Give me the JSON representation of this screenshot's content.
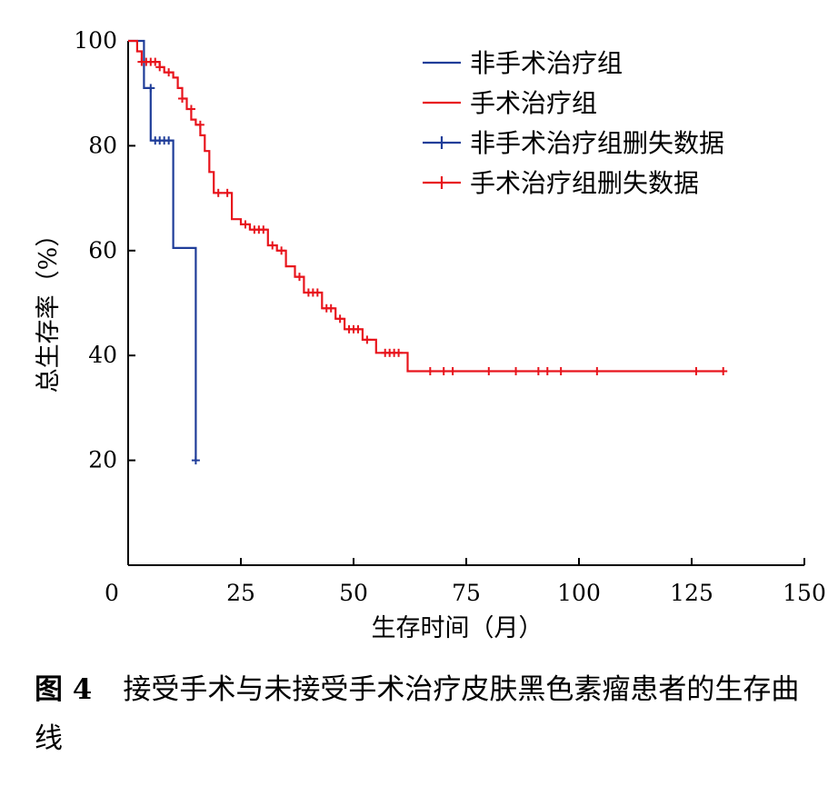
{
  "caption": {
    "label": "图 4",
    "text": "接受手术与未接受手术治疗皮肤黑色素瘤患者的生存曲线"
  },
  "chart_data": {
    "type": "line",
    "title": "",
    "xlabel": "生存时间（月）",
    "ylabel": "总生存率（%）",
    "xlim": [
      0,
      150
    ],
    "ylim": [
      0,
      100
    ],
    "x_ticks": [
      "0",
      "25",
      "50",
      "75",
      "100",
      "125",
      "150"
    ],
    "y_ticks": [
      "20",
      "40",
      "60",
      "80",
      "100"
    ],
    "grid": false,
    "legend_position": "top-right",
    "legend": [
      {
        "label": "非手术治疗组",
        "color": "#1f3d99",
        "marker": "line"
      },
      {
        "label": "手术治疗组",
        "color": "#e8141c",
        "marker": "line"
      },
      {
        "label": "非手术治疗组删失数据",
        "color": "#1f3d99",
        "marker": "plus"
      },
      {
        "label": "手术治疗组删失数据",
        "color": "#e8141c",
        "marker": "plus"
      }
    ],
    "series": [
      {
        "name": "非手术治疗组",
        "color": "#1f3d99",
        "steps": [
          [
            0,
            100
          ],
          [
            3.5,
            100
          ],
          [
            3.5,
            91
          ],
          [
            5,
            91
          ],
          [
            5,
            81
          ],
          [
            10,
            81
          ],
          [
            10,
            60.5
          ],
          [
            15,
            60.5
          ],
          [
            15,
            20
          ]
        ],
        "censored": [
          [
            5,
            91
          ],
          [
            6,
            81
          ],
          [
            7,
            81
          ],
          [
            8,
            81
          ],
          [
            9,
            81
          ],
          [
            15,
            20
          ]
        ]
      },
      {
        "name": "手术治疗组",
        "color": "#e8141c",
        "steps": [
          [
            0,
            100
          ],
          [
            2,
            100
          ],
          [
            2,
            98
          ],
          [
            3,
            98
          ],
          [
            3,
            96
          ],
          [
            7,
            96
          ],
          [
            7,
            95
          ],
          [
            8,
            95
          ],
          [
            8,
            94
          ],
          [
            10,
            94
          ],
          [
            10,
            93
          ],
          [
            11,
            93
          ],
          [
            11,
            91
          ],
          [
            12,
            91
          ],
          [
            12,
            89
          ],
          [
            13,
            89
          ],
          [
            13,
            87
          ],
          [
            14,
            87
          ],
          [
            14,
            85
          ],
          [
            15,
            85
          ],
          [
            15,
            84
          ],
          [
            16,
            84
          ],
          [
            16,
            82
          ],
          [
            17,
            82
          ],
          [
            17,
            79
          ],
          [
            18,
            79
          ],
          [
            18,
            75
          ],
          [
            19,
            75
          ],
          [
            19,
            71
          ],
          [
            23,
            71
          ],
          [
            23,
            66
          ],
          [
            25,
            66
          ],
          [
            25,
            65
          ],
          [
            27,
            65
          ],
          [
            27,
            64
          ],
          [
            31,
            64
          ],
          [
            31,
            61
          ],
          [
            33,
            61
          ],
          [
            33,
            60
          ],
          [
            35,
            60
          ],
          [
            35,
            57
          ],
          [
            37,
            57
          ],
          [
            37,
            55
          ],
          [
            39,
            55
          ],
          [
            39,
            52
          ],
          [
            43,
            52
          ],
          [
            43,
            49
          ],
          [
            46,
            49
          ],
          [
            46,
            47
          ],
          [
            48,
            47
          ],
          [
            48,
            45
          ],
          [
            52,
            45
          ],
          [
            52,
            43
          ],
          [
            55,
            43
          ],
          [
            55,
            40.5
          ],
          [
            62,
            40.5
          ],
          [
            62,
            37
          ],
          [
            132,
            37
          ]
        ],
        "censored": [
          [
            3,
            96
          ],
          [
            4,
            96
          ],
          [
            5,
            96
          ],
          [
            6,
            96
          ],
          [
            7,
            95
          ],
          [
            9,
            94
          ],
          [
            12,
            89
          ],
          [
            14,
            87
          ],
          [
            16,
            84
          ],
          [
            20,
            71
          ],
          [
            22,
            71
          ],
          [
            26,
            65
          ],
          [
            28,
            64
          ],
          [
            29,
            64
          ],
          [
            30,
            64
          ],
          [
            32,
            61
          ],
          [
            34,
            60
          ],
          [
            38,
            55
          ],
          [
            40,
            52
          ],
          [
            41,
            52
          ],
          [
            42,
            52
          ],
          [
            44,
            49
          ],
          [
            45,
            49
          ],
          [
            47,
            47
          ],
          [
            49,
            45
          ],
          [
            50,
            45
          ],
          [
            51,
            45
          ],
          [
            53,
            43
          ],
          [
            57,
            40.5
          ],
          [
            58,
            40.5
          ],
          [
            59,
            40.5
          ],
          [
            60,
            40.5
          ],
          [
            67,
            37
          ],
          [
            70,
            37
          ],
          [
            72,
            37
          ],
          [
            80,
            37
          ],
          [
            86,
            37
          ],
          [
            91,
            37
          ],
          [
            93,
            37
          ],
          [
            96,
            37
          ],
          [
            104,
            37
          ],
          [
            126,
            37
          ],
          [
            132,
            37
          ]
        ]
      }
    ]
  }
}
